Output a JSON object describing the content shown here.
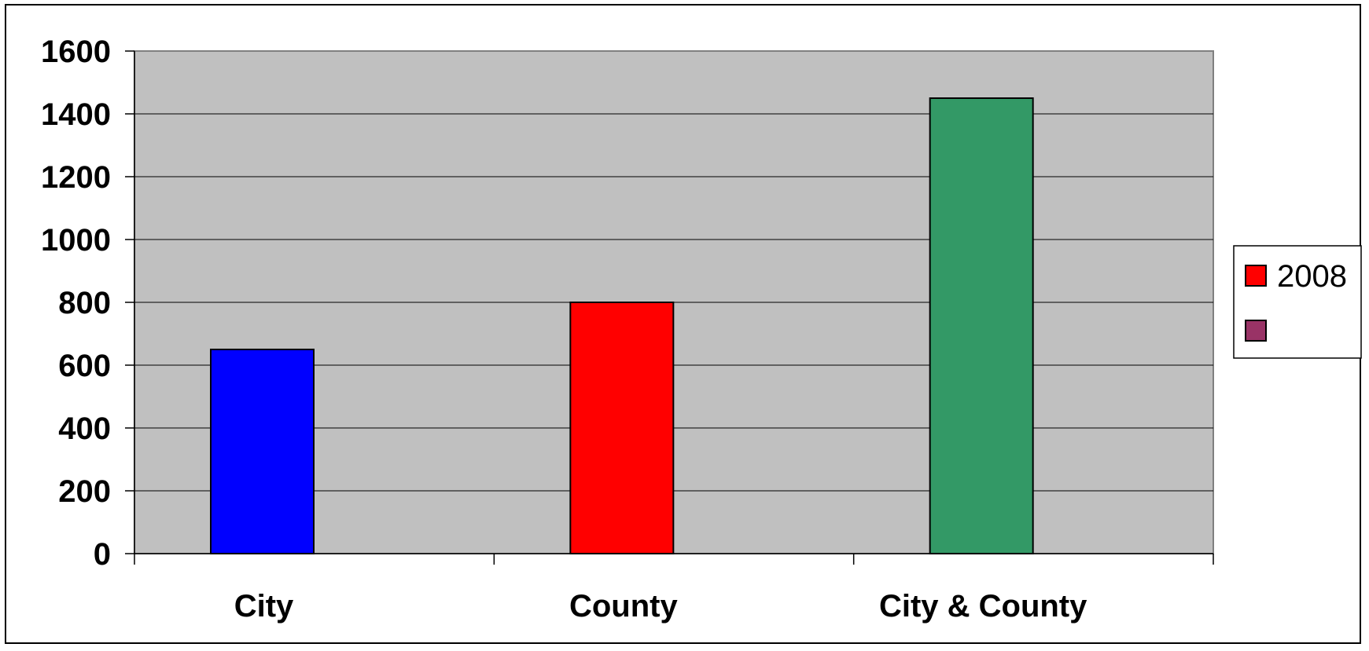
{
  "chart_data": {
    "type": "bar",
    "title": "",
    "xlabel": "",
    "ylabel": "",
    "categories": [
      "City",
      "County",
      "City & County"
    ],
    "series": [
      {
        "name": "2008",
        "values": [
          650,
          800,
          1450
        ]
      }
    ],
    "bar_colors": [
      "#0000ff",
      "#ff0000",
      "#339966"
    ],
    "ylim": [
      0,
      1600
    ],
    "yticks": [
      "0",
      "200",
      "400",
      "600",
      "800",
      "1000",
      "1200",
      "1400",
      "1600"
    ],
    "plot_background": "#c0c0c0",
    "grid": true,
    "legend": {
      "placement": "right",
      "entries": [
        {
          "label": "2008",
          "color": "#ff0000"
        },
        {
          "label": "",
          "color": "#993366"
        }
      ]
    }
  }
}
